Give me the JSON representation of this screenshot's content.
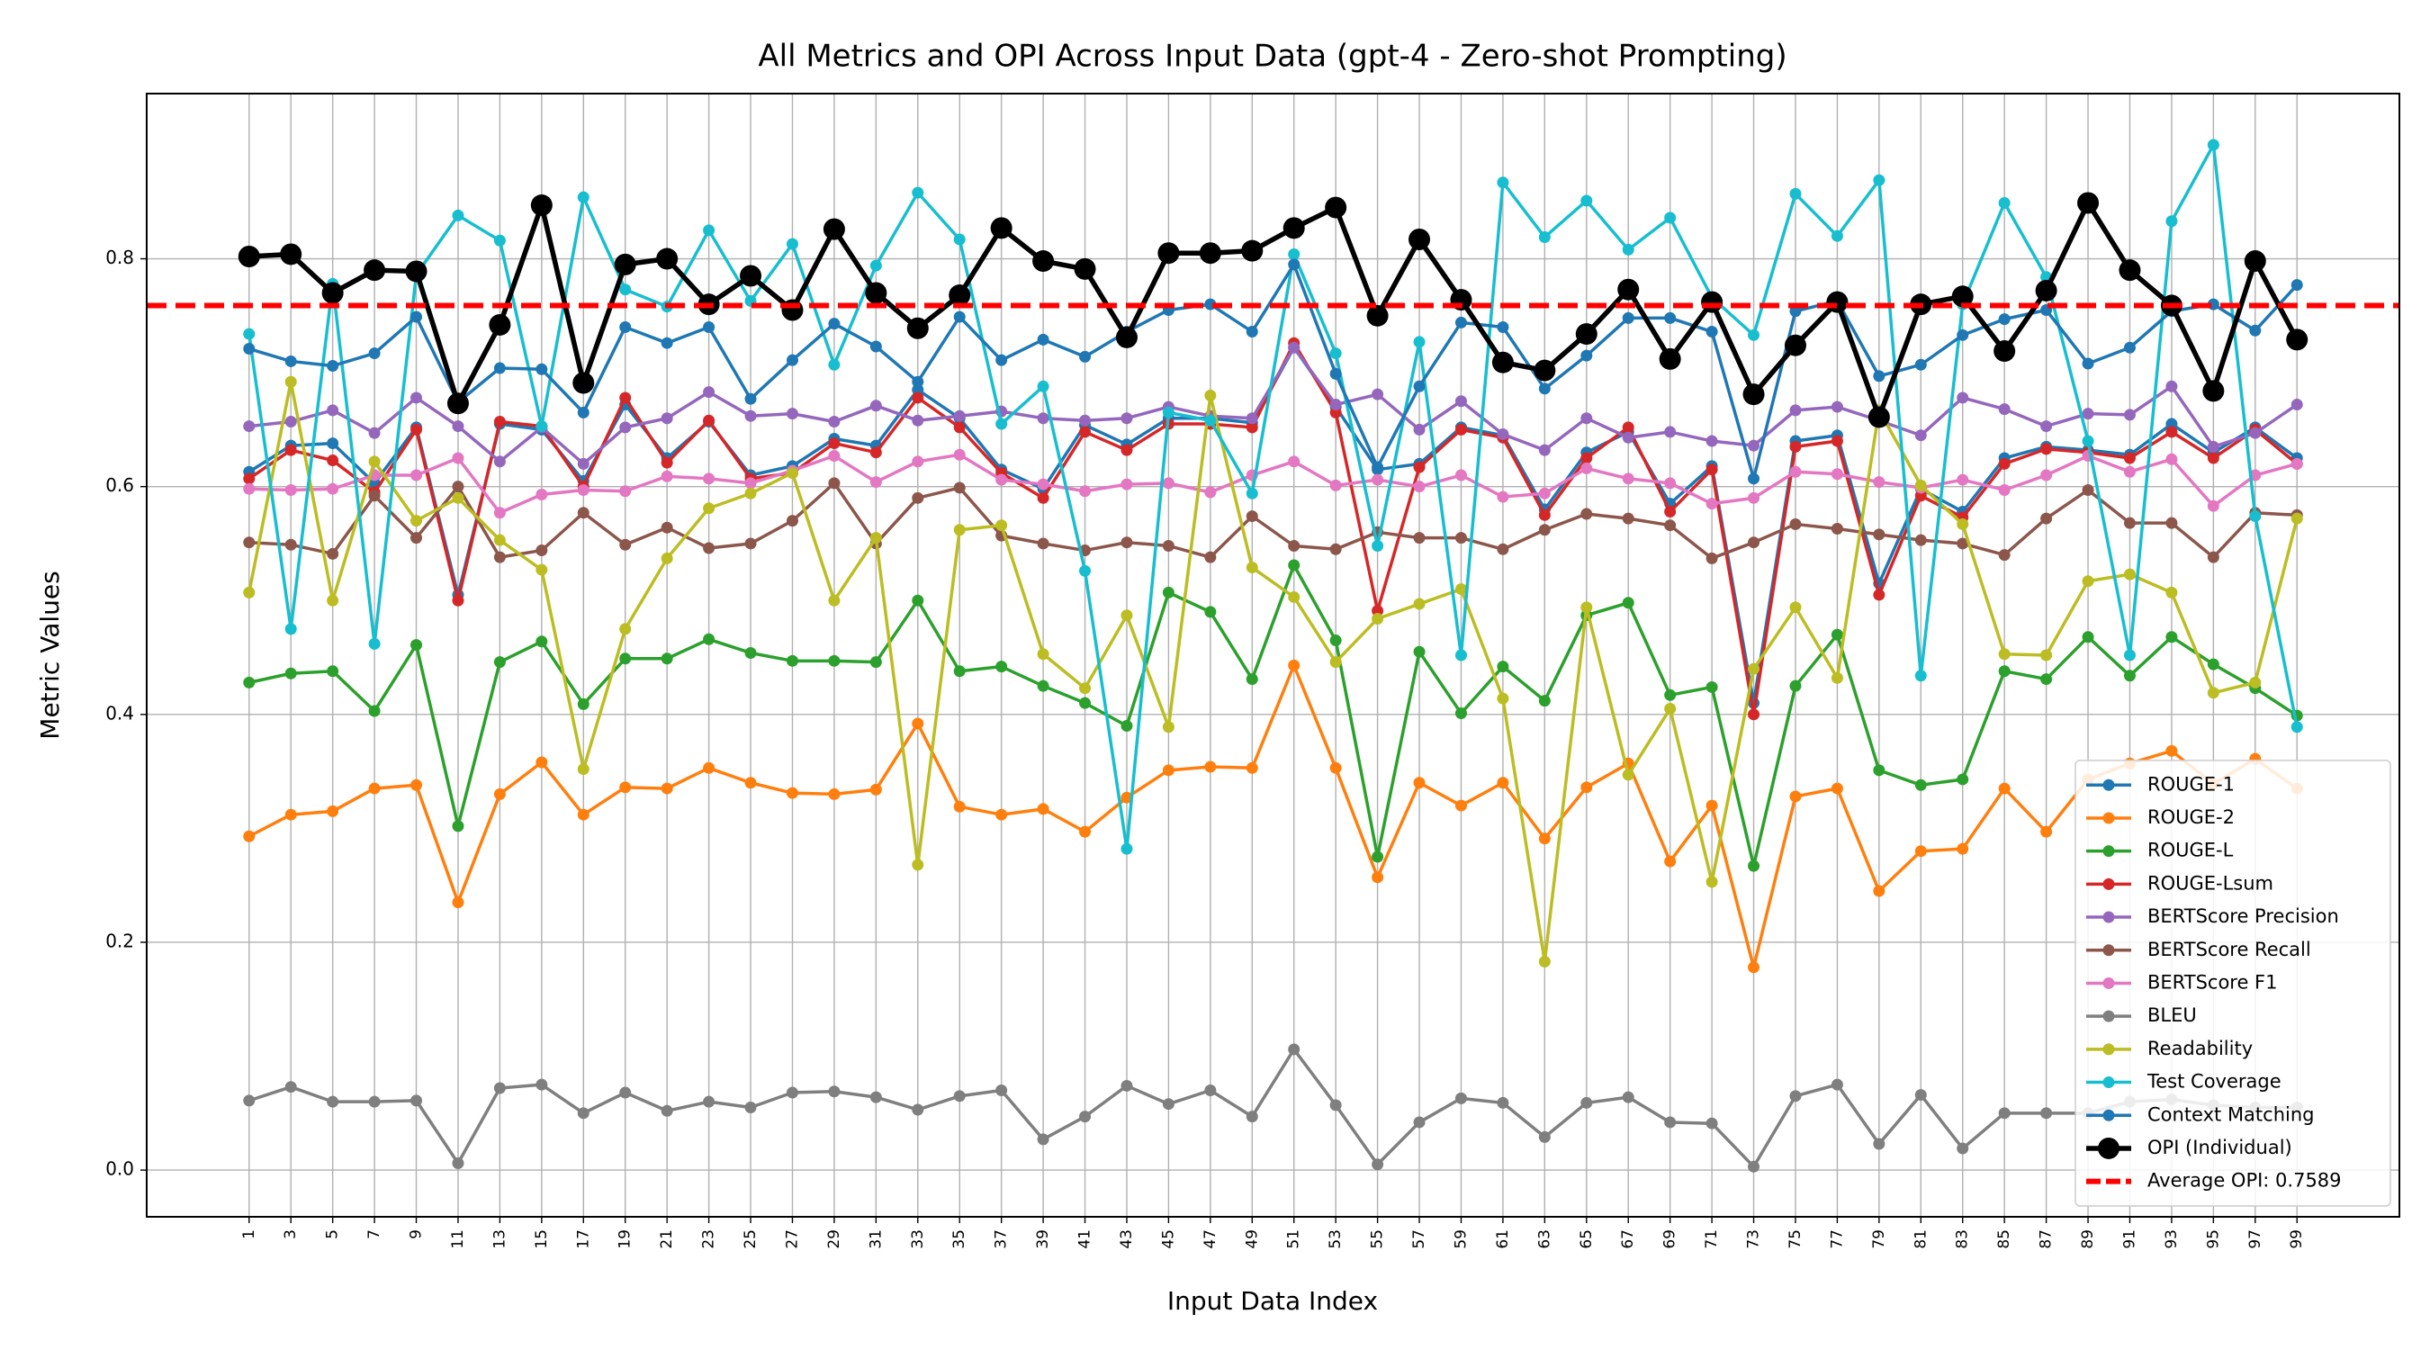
{
  "chart_data": {
    "type": "line",
    "title": "All Metrics and OPI Across Input Data (gpt-4 - Zero-shot Prompting)",
    "xlabel": "Input Data Index",
    "ylabel": "Metric Values",
    "x": [
      1,
      3,
      5,
      7,
      9,
      11,
      13,
      15,
      17,
      19,
      21,
      23,
      25,
      27,
      29,
      31,
      33,
      35,
      37,
      39,
      41,
      43,
      45,
      47,
      49,
      51,
      53,
      55,
      57,
      59,
      61,
      63,
      65,
      67,
      69,
      71,
      73,
      75,
      77,
      79,
      81,
      83,
      85,
      87,
      89,
      91,
      93,
      95,
      97,
      99
    ],
    "xticks": [
      1,
      3,
      5,
      7,
      9,
      11,
      13,
      15,
      17,
      19,
      21,
      23,
      25,
      27,
      29,
      31,
      33,
      35,
      37,
      39,
      41,
      43,
      45,
      47,
      49,
      51,
      53,
      55,
      57,
      59,
      61,
      63,
      65,
      67,
      69,
      71,
      73,
      75,
      77,
      79,
      81,
      83,
      85,
      87,
      89,
      91,
      93,
      95,
      97,
      99
    ],
    "xlim": [
      -3.9,
      103.9
    ],
    "ylim": [
      -0.041,
      0.945
    ],
    "yticks": [
      {
        "value": 0,
        "label": "0.0"
      },
      0.2,
      0.4,
      0.6,
      0.8
    ],
    "grid": true,
    "legend": "lower right",
    "series": [
      {
        "name": "ROUGE-1",
        "color": "#1f77b4",
        "values": [
          0.613,
          0.636,
          0.638,
          0.603,
          0.652,
          0.505,
          0.655,
          0.65,
          0.605,
          0.672,
          0.625,
          0.657,
          0.61,
          0.618,
          0.642,
          0.636,
          0.685,
          0.66,
          0.615,
          0.598,
          0.654,
          0.637,
          0.66,
          0.66,
          0.656,
          0.722,
          0.67,
          0.615,
          0.62,
          0.652,
          0.645,
          0.58,
          0.63,
          0.648,
          0.585,
          0.618,
          0.41,
          0.64,
          0.645,
          0.515,
          0.598,
          0.578,
          0.625,
          0.635,
          0.632,
          0.628,
          0.655,
          0.63,
          0.652,
          0.625
        ]
      },
      {
        "name": "ROUGE-2",
        "color": "#ff7f0e",
        "values": [
          0.293,
          0.312,
          0.315,
          0.335,
          0.338,
          0.235,
          0.33,
          0.358,
          0.312,
          0.336,
          0.335,
          0.353,
          0.34,
          0.331,
          0.33,
          0.334,
          0.392,
          0.319,
          0.312,
          0.317,
          0.297,
          0.327,
          0.351,
          0.354,
          0.353,
          0.443,
          0.353,
          0.257,
          0.34,
          0.32,
          0.34,
          0.291,
          0.336,
          0.357,
          0.271,
          0.32,
          0.178,
          0.328,
          0.335,
          0.245,
          0.28,
          0.282,
          0.335,
          0.297,
          0.343,
          0.357,
          0.368,
          0.339,
          0.361,
          0.335
        ]
      },
      {
        "name": "ROUGE-L",
        "color": "#2ca02c",
        "values": [
          0.428,
          0.436,
          0.438,
          0.403,
          0.461,
          0.302,
          0.446,
          0.464,
          0.409,
          0.449,
          0.449,
          0.466,
          0.454,
          0.447,
          0.447,
          0.446,
          0.5,
          0.438,
          0.442,
          0.425,
          0.41,
          0.39,
          0.507,
          0.49,
          0.431,
          0.531,
          0.465,
          0.275,
          0.455,
          0.401,
          0.442,
          0.412,
          0.487,
          0.498,
          0.417,
          0.424,
          0.267,
          0.425,
          0.47,
          0.351,
          0.338,
          0.343,
          0.438,
          0.431,
          0.468,
          0.434,
          0.468,
          0.444,
          0.423,
          0.399
        ]
      },
      {
        "name": "ROUGE-Lsum",
        "color": "#d62728",
        "values": [
          0.607,
          0.632,
          0.623,
          0.595,
          0.65,
          0.5,
          0.657,
          0.653,
          0.6,
          0.678,
          0.621,
          0.658,
          0.607,
          0.612,
          0.638,
          0.63,
          0.678,
          0.652,
          0.612,
          0.59,
          0.648,
          0.632,
          0.655,
          0.655,
          0.652,
          0.726,
          0.665,
          0.491,
          0.617,
          0.65,
          0.643,
          0.575,
          0.625,
          0.652,
          0.578,
          0.615,
          0.4,
          0.635,
          0.64,
          0.505,
          0.592,
          0.573,
          0.62,
          0.633,
          0.63,
          0.625,
          0.648,
          0.625,
          0.65,
          0.62
        ]
      },
      {
        "name": "BERTScore Precision",
        "color": "#9467bd",
        "values": [
          0.653,
          0.657,
          0.667,
          0.647,
          0.678,
          0.653,
          0.622,
          0.652,
          0.62,
          0.652,
          0.66,
          0.683,
          0.662,
          0.664,
          0.657,
          0.671,
          0.658,
          0.662,
          0.666,
          0.66,
          0.658,
          0.66,
          0.67,
          0.662,
          0.66,
          0.722,
          0.672,
          0.681,
          0.65,
          0.675,
          0.646,
          0.632,
          0.66,
          0.643,
          0.648,
          0.64,
          0.636,
          0.667,
          0.67,
          0.658,
          0.645,
          0.678,
          0.668,
          0.653,
          0.664,
          0.663,
          0.688,
          0.635,
          0.647,
          0.672
        ]
      },
      {
        "name": "BERTScore Recall",
        "color": "#8c564b",
        "values": [
          0.551,
          0.549,
          0.541,
          0.592,
          0.555,
          0.6,
          0.538,
          0.544,
          0.577,
          0.549,
          0.564,
          0.546,
          0.55,
          0.57,
          0.603,
          0.55,
          0.59,
          0.599,
          0.557,
          0.55,
          0.544,
          0.551,
          0.548,
          0.538,
          0.574,
          0.548,
          0.545,
          0.56,
          0.555,
          0.555,
          0.545,
          0.562,
          0.576,
          0.572,
          0.566,
          0.537,
          0.551,
          0.567,
          0.563,
          0.558,
          0.553,
          0.55,
          0.54,
          0.572,
          0.597,
          0.568,
          0.568,
          0.538,
          0.577,
          0.575
        ]
      },
      {
        "name": "BERTScore F1",
        "color": "#e377c2",
        "values": [
          0.598,
          0.597,
          0.598,
          0.61,
          0.61,
          0.625,
          0.577,
          0.593,
          0.597,
          0.596,
          0.609,
          0.607,
          0.603,
          0.614,
          0.627,
          0.604,
          0.622,
          0.628,
          0.606,
          0.602,
          0.596,
          0.602,
          0.603,
          0.595,
          0.61,
          0.622,
          0.601,
          0.606,
          0.6,
          0.61,
          0.591,
          0.594,
          0.616,
          0.607,
          0.603,
          0.585,
          0.59,
          0.613,
          0.611,
          0.604,
          0.599,
          0.606,
          0.597,
          0.61,
          0.627,
          0.613,
          0.624,
          0.583,
          0.61,
          0.62
        ]
      },
      {
        "name": "BLEU",
        "color": "#7f7f7f",
        "values": [
          0.061,
          0.073,
          0.06,
          0.06,
          0.061,
          0.006,
          0.072,
          0.075,
          0.05,
          0.068,
          0.052,
          0.06,
          0.055,
          0.068,
          0.069,
          0.064,
          0.053,
          0.065,
          0.07,
          0.027,
          0.047,
          0.074,
          0.058,
          0.07,
          0.047,
          0.106,
          0.057,
          0.005,
          0.042,
          0.063,
          0.059,
          0.029,
          0.059,
          0.064,
          0.042,
          0.041,
          0.003,
          0.065,
          0.075,
          0.023,
          0.066,
          0.019,
          0.05,
          0.05,
          0.05,
          0.06,
          0.062,
          0.057,
          0.055,
          0.055
        ]
      },
      {
        "name": "Readability",
        "color": "#bcbd22",
        "values": [
          0.507,
          0.692,
          0.5,
          0.622,
          0.57,
          0.59,
          0.553,
          0.527,
          0.352,
          0.475,
          0.537,
          0.581,
          0.594,
          0.612,
          0.5,
          0.555,
          0.268,
          0.562,
          0.566,
          0.453,
          0.423,
          0.487,
          0.389,
          0.68,
          0.529,
          0.503,
          0.446,
          0.484,
          0.497,
          0.51,
          0.414,
          0.183,
          0.494,
          0.347,
          0.405,
          0.253,
          0.44,
          0.494,
          0.432,
          0.667,
          0.601,
          0.567,
          0.453,
          0.452,
          0.517,
          0.523,
          0.507,
          0.419,
          0.428,
          0.572
        ]
      },
      {
        "name": "Test Coverage",
        "color": "#17becf",
        "values": [
          0.734,
          0.475,
          0.778,
          0.462,
          0.786,
          0.838,
          0.816,
          0.653,
          0.854,
          0.773,
          0.758,
          0.825,
          0.763,
          0.813,
          0.707,
          0.794,
          0.858,
          0.817,
          0.655,
          0.688,
          0.526,
          0.282,
          0.665,
          0.658,
          0.594,
          0.804,
          0.717,
          0.548,
          0.727,
          0.452,
          0.867,
          0.819,
          0.851,
          0.808,
          0.836,
          0.766,
          0.733,
          0.857,
          0.82,
          0.869,
          0.434,
          0.76,
          0.849,
          0.784,
          0.64,
          0.452,
          0.833,
          0.9,
          0.574,
          0.389
        ]
      },
      {
        "name": "Context Matching",
        "color": "#1f77b4",
        "values": [
          0.721,
          0.71,
          0.706,
          0.717,
          0.749,
          0.674,
          0.704,
          0.703,
          0.665,
          0.74,
          0.726,
          0.74,
          0.677,
          0.711,
          0.743,
          0.723,
          0.692,
          0.749,
          0.711,
          0.729,
          0.714,
          0.736,
          0.755,
          0.76,
          0.736,
          0.795,
          0.699,
          0.617,
          0.688,
          0.744,
          0.74,
          0.686,
          0.715,
          0.748,
          0.748,
          0.736,
          0.607,
          0.754,
          0.763,
          0.697,
          0.707,
          0.733,
          0.747,
          0.755,
          0.708,
          0.722,
          0.754,
          0.76,
          0.737,
          0.777
        ]
      },
      {
        "name": "OPI (Individual)",
        "color": "#000000",
        "emphasis": true,
        "values": [
          0.802,
          0.804,
          0.77,
          0.79,
          0.789,
          0.673,
          0.742,
          0.847,
          0.691,
          0.795,
          0.8,
          0.76,
          0.785,
          0.755,
          0.826,
          0.77,
          0.739,
          0.768,
          0.827,
          0.798,
          0.791,
          0.731,
          0.805,
          0.805,
          0.807,
          0.827,
          0.845,
          0.75,
          0.817,
          0.764,
          0.709,
          0.702,
          0.734,
          0.773,
          0.712,
          0.762,
          0.681,
          0.724,
          0.762,
          0.661,
          0.76,
          0.767,
          0.719,
          0.772,
          0.849,
          0.79,
          0.759,
          0.684,
          0.798,
          0.729
        ]
      }
    ],
    "hlines": [
      {
        "name": "Average OPI: 0.7589",
        "value": 0.7589,
        "color": "#ff0000",
        "style": "dashed"
      }
    ]
  }
}
